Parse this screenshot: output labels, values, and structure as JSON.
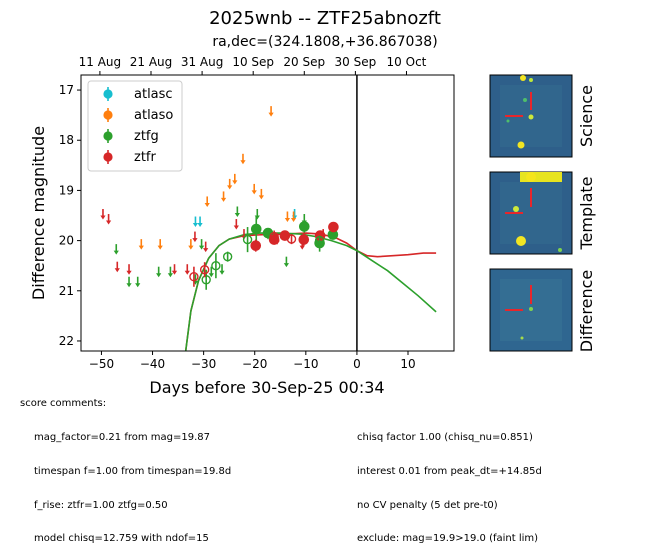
{
  "title": "2025wnb -- ZTF25abnozft",
  "subtitle": "ra,dec=(324.1808,+36.867038)",
  "comments": {
    "heading": "score comments:",
    "left": [
      "mag_factor=0.21 from mag=19.87",
      "timespan f=1.00 from timespan=19.8d",
      "f_rise: ztfr=1.00 ztfg=0.50",
      "model chisq=12.759 with ndof=15"
    ],
    "right": [
      "chisq factor 1.00 (chisq_nu=0.851)",
      "interest 0.01 from peak_dt=+14.85d",
      "no CV penalty (5 det pre-t0)",
      "exclude: mag=19.9>19.0 (faint lim)"
    ]
  },
  "stamps": [
    {
      "label": "Science"
    },
    {
      "label": "Template"
    },
    {
      "label": "Difference"
    }
  ],
  "colors": {
    "atlasc": "#17becf",
    "atlaso": "#ff7f0e",
    "ztfg": "#2ca02c",
    "ztfr": "#d62728"
  },
  "chart_data": {
    "type": "scatter",
    "xlabel": "Days before 30-Sep-25 00:34",
    "ylabel": "Difference magnitude",
    "xlim": [
      -54,
      19
    ],
    "ylim": [
      22.2,
      16.7
    ],
    "y_inverted": true,
    "x_ticks": [
      -50,
      -40,
      -30,
      -20,
      -10,
      0,
      10
    ],
    "y_ticks": [
      17,
      18,
      19,
      20,
      21,
      22
    ],
    "top_axis_labels": [
      {
        "x": -50.3,
        "label": "11 Aug"
      },
      {
        "x": -40.3,
        "label": "21 Aug"
      },
      {
        "x": -30.3,
        "label": "31 Aug"
      },
      {
        "x": -20.3,
        "label": "10 Sep"
      },
      {
        "x": -10.3,
        "label": "20 Sep"
      },
      {
        "x": -0.3,
        "label": "30 Sep"
      },
      {
        "x": 9.7,
        "label": "10 Oct"
      }
    ],
    "vline_x": 0,
    "legend": {
      "position": "upper-left",
      "entries": [
        "atlasc",
        "atlaso",
        "ztfg",
        "ztfr"
      ]
    },
    "upper_limits": {
      "atlasc": [
        [
          -31.6,
          19.6
        ],
        [
          -30.7,
          19.6
        ],
        [
          -12.2,
          19.45
        ]
      ],
      "atlaso": [
        [
          -42.2,
          20.05
        ],
        [
          -38.5,
          20.05
        ],
        [
          -32.5,
          20.05
        ],
        [
          -29.3,
          19.2
        ],
        [
          -26.1,
          19.1
        ],
        [
          -24.9,
          18.85
        ],
        [
          -23.9,
          18.75
        ],
        [
          -22.3,
          18.35
        ],
        [
          -20.1,
          18.95
        ],
        [
          -18.7,
          19.05
        ],
        [
          -16.8,
          17.4
        ],
        [
          -13.6,
          19.5
        ],
        [
          -12.4,
          19.5
        ]
      ],
      "ztfg": [
        [
          -47.1,
          20.15
        ],
        [
          -44.6,
          20.8
        ],
        [
          -42.9,
          20.8
        ],
        [
          -38.8,
          20.6
        ],
        [
          -36.5,
          20.6
        ],
        [
          -31.6,
          20.75
        ],
        [
          -30.4,
          20.05
        ],
        [
          -28.5,
          20.6
        ],
        [
          -26.4,
          20.55
        ],
        [
          -23.4,
          19.4
        ],
        [
          -19.5,
          19.45
        ],
        [
          -17.4,
          19.85
        ],
        [
          -13.8,
          20.4
        ],
        [
          -10.3,
          19.55
        ],
        [
          -7.5,
          19.95
        ]
      ],
      "ztfr": [
        [
          -49.7,
          19.45
        ],
        [
          -48.6,
          19.55
        ],
        [
          -46.9,
          20.5
        ],
        [
          -44.6,
          20.55
        ],
        [
          -35.7,
          20.55
        ],
        [
          -33.2,
          20.55
        ],
        [
          -31.7,
          19.9
        ],
        [
          -29.6,
          20.1
        ],
        [
          -23.6,
          19.65
        ],
        [
          -22.1,
          19.85
        ],
        [
          -15.6,
          19.95
        ],
        [
          -10.7,
          20.05
        ],
        [
          -6.6,
          19.85
        ]
      ]
    },
    "detections": [
      {
        "band": "ztfg",
        "x": -19.7,
        "y": 19.77,
        "err": 0.25,
        "filled": true
      },
      {
        "band": "ztfg",
        "x": -17.4,
        "y": 19.85,
        "err": 0.1,
        "filled": true
      },
      {
        "band": "ztfg",
        "x": -10.3,
        "y": 19.72,
        "err": 0.12,
        "filled": true
      },
      {
        "band": "ztfg",
        "x": -7.3,
        "y": 20.05,
        "err": 0.17,
        "filled": true
      },
      {
        "band": "ztfg",
        "x": -4.7,
        "y": 19.88,
        "err": 0.1,
        "filled": true
      },
      {
        "band": "ztfr",
        "x": -19.8,
        "y": 20.1,
        "err": 0.12,
        "filled": true
      },
      {
        "band": "ztfr",
        "x": -16.2,
        "y": 19.98,
        "err": 0.1,
        "filled": true
      },
      {
        "band": "ztfr",
        "x": -14.1,
        "y": 19.9,
        "err": 0.1,
        "filled": true
      },
      {
        "band": "ztfr",
        "x": -10.4,
        "y": 19.98,
        "err": 0.12,
        "filled": true
      },
      {
        "band": "ztfr",
        "x": -7.2,
        "y": 19.9,
        "err": 0.1,
        "filled": true
      },
      {
        "band": "ztfr",
        "x": -4.6,
        "y": 19.73,
        "err": 0.07,
        "filled": true
      },
      {
        "band": "ztfg",
        "x": -29.5,
        "y": 20.78,
        "err": 0.2,
        "filled": false
      },
      {
        "band": "ztfg",
        "x": -27.6,
        "y": 20.5,
        "err": 0.25,
        "filled": false
      },
      {
        "band": "ztfg",
        "x": -25.3,
        "y": 20.32,
        "err": 0.1,
        "filled": false
      },
      {
        "band": "ztfg",
        "x": -21.4,
        "y": 19.98,
        "err": 0.25,
        "filled": false
      },
      {
        "band": "ztfg",
        "x": -7.3,
        "y": 20.0,
        "err": 0.1,
        "filled": false
      },
      {
        "band": "ztfr",
        "x": -31.9,
        "y": 20.72,
        "err": 0.2,
        "filled": false
      },
      {
        "band": "ztfr",
        "x": -29.8,
        "y": 20.58,
        "err": 0.15,
        "filled": false
      },
      {
        "band": "ztfr",
        "x": -16.2,
        "y": 19.92,
        "err": 0.12,
        "filled": false
      },
      {
        "band": "ztfr",
        "x": -12.8,
        "y": 19.97,
        "err": 0.1,
        "filled": false
      }
    ],
    "model_curves": [
      {
        "band": "ztfr",
        "points": [
          [
            -33.5,
            22.2
          ],
          [
            -32.5,
            21.4
          ],
          [
            -31,
            20.8
          ],
          [
            -29,
            20.35
          ],
          [
            -27,
            20.1
          ],
          [
            -25,
            19.97
          ],
          [
            -22,
            19.9
          ],
          [
            -18,
            19.88
          ],
          [
            -14,
            19.87
          ],
          [
            -10,
            19.85
          ],
          [
            -7,
            19.87
          ],
          [
            -4,
            19.95
          ],
          [
            -2,
            20.05
          ],
          [
            0,
            20.2
          ],
          [
            2,
            20.3
          ],
          [
            4,
            20.32
          ],
          [
            7,
            20.3
          ],
          [
            10,
            20.28
          ],
          [
            13,
            20.25
          ],
          [
            15.5,
            20.25
          ]
        ]
      },
      {
        "band": "ztfg",
        "points": [
          [
            -33.5,
            22.2
          ],
          [
            -32.5,
            21.4
          ],
          [
            -31,
            20.8
          ],
          [
            -29,
            20.35
          ],
          [
            -27,
            20.1
          ],
          [
            -25,
            19.97
          ],
          [
            -22,
            19.88
          ],
          [
            -19,
            19.85
          ],
          [
            -15,
            19.85
          ],
          [
            -11,
            19.87
          ],
          [
            -8,
            19.92
          ],
          [
            -5,
            20.0
          ],
          [
            -2,
            20.1
          ],
          [
            0,
            20.2
          ],
          [
            3,
            20.4
          ],
          [
            6,
            20.6
          ],
          [
            9,
            20.85
          ],
          [
            12,
            21.1
          ],
          [
            15.5,
            21.42
          ]
        ]
      }
    ]
  }
}
